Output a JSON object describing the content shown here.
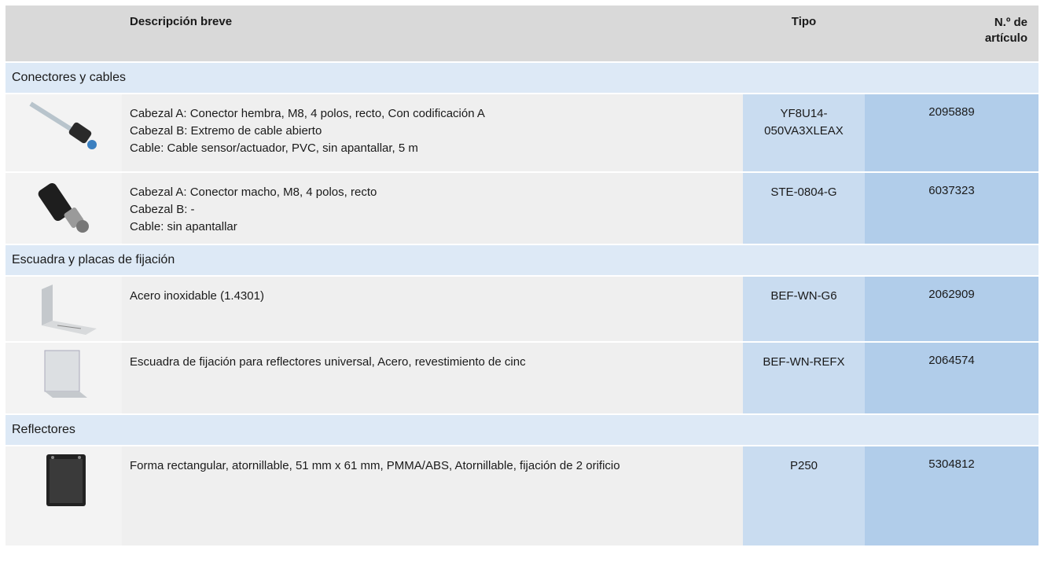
{
  "header": {
    "columns": [
      "Descripción breve",
      "Tipo",
      "N.º de artículo"
    ]
  },
  "groups": [
    {
      "title": "Conectores y cables",
      "items": [
        {
          "description": [
            "Cabezal A: Conector hembra, M8, 4 polos, recto, Con codificación A",
            "Cabezal B: Extremo de cable abierto",
            "Cable: Cable sensor/actuador, PVC, sin apantallar, 5 m"
          ],
          "type": "YF8U14-050VA3XLEAX",
          "article": "2095889"
        },
        {
          "description": [
            "Cabezal A: Conector macho, M8, 4 polos, recto",
            "Cabezal B: -",
            "Cable: sin apantallar"
          ],
          "type": "STE-0804-G",
          "article": "6037323"
        }
      ]
    },
    {
      "title": "Escuadra y placas de fijación",
      "items": [
        {
          "description": [
            "Acero inoxidable (1.4301)"
          ],
          "type": "BEF-WN-G6",
          "article": "2062909"
        },
        {
          "description": [
            "Escuadra de fijación para reflectores universal, Acero, revestimiento de cinc"
          ],
          "type": "BEF-WN-REFX",
          "article": "2064574"
        }
      ]
    },
    {
      "title": "Reflectores",
      "items": [
        {
          "description": [
            "Forma rectangular, atornillable, 51 mm x 61 mm, PMMA/ABS, Atornillable, fijación de 2 orificio"
          ],
          "type": "P250",
          "article": "5304812"
        }
      ]
    }
  ]
}
